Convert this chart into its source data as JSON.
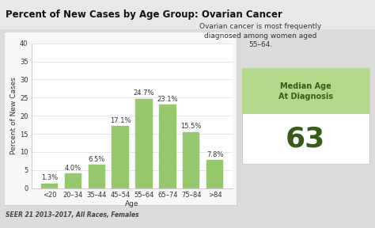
{
  "title": "Percent of New Cases by Age Group: Ovarian Cancer",
  "categories": [
    "<20",
    "20–34",
    "35–44",
    "45–54",
    "55–64",
    "65–74",
    "75–84",
    ">84"
  ],
  "values": [
    1.3,
    4.0,
    6.5,
    17.1,
    24.7,
    23.1,
    15.5,
    7.8
  ],
  "bar_color": "#96c96b",
  "bar_edgecolor": "#96c96b",
  "xlabel": "Age",
  "ylabel": "Percent of New Cases",
  "ylim": [
    0,
    40
  ],
  "yticks": [
    0,
    5,
    10,
    15,
    20,
    25,
    30,
    35,
    40
  ],
  "footnote": "SEER 21 2013–2017, All Races, Females",
  "sidebar_text1": "Ovarian cancer is most frequently\ndiagnosed among women aged\n55–64.",
  "sidebar_label": "Median Age\nAt Diagnosis",
  "sidebar_value": "63",
  "sidebar_bg": "#b5d98b",
  "outer_bg": "#dcdcdc",
  "title_bar_bg": "#e8e8e8",
  "chart_card_bg": "#f7f7f7",
  "chart_inner_bg": "#ffffff",
  "title_fontsize": 8.5,
  "bar_label_fontsize": 6,
  "axis_label_fontsize": 6.5,
  "tick_fontsize": 6,
  "footnote_fontsize": 5.5,
  "sidebar_text_fontsize": 6.5,
  "sidebar_label_fontsize": 7,
  "sidebar_value_fontsize": 26,
  "text_color_dark": "#3a5a1a",
  "text_color_body": "#333333"
}
